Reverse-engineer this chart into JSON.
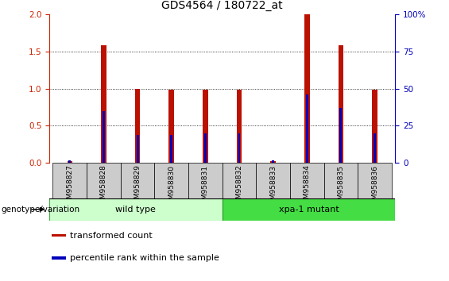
{
  "title": "GDS4564 / 180722_at",
  "samples": [
    "GSM958827",
    "GSM958828",
    "GSM958829",
    "GSM958830",
    "GSM958831",
    "GSM958832",
    "GSM958833",
    "GSM958834",
    "GSM958835",
    "GSM958836"
  ],
  "red_values": [
    0.02,
    1.58,
    1.0,
    0.98,
    0.98,
    0.98,
    0.02,
    2.0,
    1.58,
    0.98
  ],
  "blue_values": [
    0.02,
    0.35,
    0.19,
    0.19,
    0.2,
    0.2,
    0.02,
    0.46,
    0.37,
    0.2
  ],
  "groups": [
    {
      "label": "wild type",
      "start": 0,
      "end": 5,
      "color": "#ccffcc",
      "edge_color": "#44aa44"
    },
    {
      "label": "xpa-1 mutant",
      "start": 5,
      "end": 10,
      "color": "#44dd44",
      "edge_color": "#229922"
    }
  ],
  "ylim_left": [
    0,
    2
  ],
  "ylim_right": [
    0,
    100
  ],
  "yticks_left": [
    0,
    0.5,
    1.0,
    1.5,
    2.0
  ],
  "yticks_right": [
    0,
    25,
    50,
    75,
    100
  ],
  "red_bar_width": 0.15,
  "blue_bar_width": 0.07,
  "red_color": "#bb1100",
  "blue_color": "#0000bb",
  "grid_color": "black",
  "title_fontsize": 10,
  "tick_label_fontsize": 7.5,
  "legend_items": [
    "transformed count",
    "percentile rank within the sample"
  ],
  "legend_colors": [
    "#bb1100",
    "#0000bb"
  ],
  "genotype_label": "genotype/variation",
  "background_color": "#ffffff",
  "plot_bg_color": "#ffffff",
  "tick_color_left": "#cc2200",
  "tick_color_right": "#0000bb",
  "sample_box_color": "#cccccc",
  "sample_label_fontsize": 6.5
}
